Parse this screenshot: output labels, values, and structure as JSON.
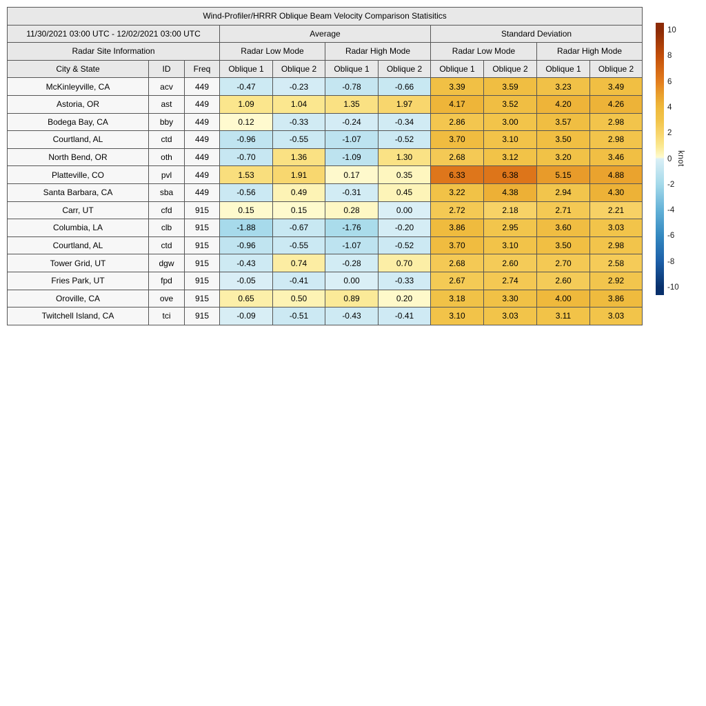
{
  "chart_data": {
    "type": "table",
    "title": "Wind-Profiler/HRRR Oblique Beam Velocity Comparison Statisitics",
    "period": "11/30/2021 03:00 UTC - 12/02/2021 03:00 UTC",
    "group_headers": [
      "Average",
      "Standard Deviation"
    ],
    "site_info_header": "Radar Site Information",
    "mode_headers": [
      "Radar Low Mode",
      "Radar High Mode",
      "Radar Low Mode",
      "Radar High Mode"
    ],
    "site_columns": [
      "City & State",
      "ID",
      "Freq"
    ],
    "oblique_headers": [
      "Oblique 1",
      "Oblique 2",
      "Oblique 1",
      "Oblique 2",
      "Oblique 1",
      "Oblique 2",
      "Oblique 1",
      "Oblique 2"
    ],
    "rows": [
      {
        "city": "McKinleyville, CA",
        "id": "acv",
        "freq": "449",
        "values": [
          -0.47,
          -0.23,
          -0.78,
          -0.66,
          3.39,
          3.59,
          3.23,
          3.49
        ]
      },
      {
        "city": "Astoria, OR",
        "id": "ast",
        "freq": "449",
        "values": [
          1.09,
          1.04,
          1.35,
          1.97,
          4.17,
          3.52,
          4.2,
          4.26
        ]
      },
      {
        "city": "Bodega Bay, CA",
        "id": "bby",
        "freq": "449",
        "values": [
          0.12,
          -0.33,
          -0.24,
          -0.34,
          2.86,
          3.0,
          3.57,
          2.98
        ]
      },
      {
        "city": "Courtland, AL",
        "id": "ctd",
        "freq": "449",
        "values": [
          -0.96,
          -0.55,
          -1.07,
          -0.52,
          3.7,
          3.1,
          3.5,
          2.98
        ]
      },
      {
        "city": "North Bend, OR",
        "id": "oth",
        "freq": "449",
        "values": [
          -0.7,
          1.36,
          -1.09,
          1.3,
          2.68,
          3.12,
          3.2,
          3.46
        ]
      },
      {
        "city": "Platteville, CO",
        "id": "pvl",
        "freq": "449",
        "values": [
          1.53,
          1.91,
          0.17,
          0.35,
          6.33,
          6.38,
          5.15,
          4.88
        ]
      },
      {
        "city": "Santa Barbara, CA",
        "id": "sba",
        "freq": "449",
        "values": [
          -0.56,
          0.49,
          -0.31,
          0.45,
          3.22,
          4.38,
          2.94,
          4.3
        ]
      },
      {
        "city": "Carr, UT",
        "id": "cfd",
        "freq": "915",
        "values": [
          0.15,
          0.15,
          0.28,
          0.0,
          2.72,
          2.18,
          2.71,
          2.21
        ]
      },
      {
        "city": "Columbia, LA",
        "id": "clb",
        "freq": "915",
        "values": [
          -1.88,
          -0.67,
          -1.76,
          -0.2,
          3.86,
          2.95,
          3.6,
          3.03
        ]
      },
      {
        "city": "Courtland, AL",
        "id": "ctd",
        "freq": "915",
        "values": [
          -0.96,
          -0.55,
          -1.07,
          -0.52,
          3.7,
          3.1,
          3.5,
          2.98
        ]
      },
      {
        "city": "Tower Grid, UT",
        "id": "dgw",
        "freq": "915",
        "values": [
          -0.43,
          0.74,
          -0.28,
          0.7,
          2.68,
          2.6,
          2.7,
          2.58
        ]
      },
      {
        "city": "Fries Park, UT",
        "id": "fpd",
        "freq": "915",
        "values": [
          -0.05,
          -0.41,
          0.0,
          -0.33,
          2.67,
          2.74,
          2.6,
          2.92
        ]
      },
      {
        "city": "Oroville, CA",
        "id": "ove",
        "freq": "915",
        "values": [
          0.65,
          0.5,
          0.89,
          0.2,
          3.18,
          3.3,
          4.0,
          3.86
        ]
      },
      {
        "city": "Twitchell Island, CA",
        "id": "tci",
        "freq": "915",
        "values": [
          -0.09,
          -0.51,
          -0.43,
          -0.41,
          3.1,
          3.03,
          3.11,
          3.03
        ]
      }
    ],
    "colorbar": {
      "unit": "knot",
      "ticks": [
        10,
        8,
        6,
        4,
        2,
        0,
        -2,
        -4,
        -6,
        -8,
        -10
      ],
      "range": [
        -10.6,
        10.6
      ],
      "colormap_anchors": [
        [
          -10.6,
          "#08306b"
        ],
        [
          -10,
          "#08306b"
        ],
        [
          -8,
          "#1c5fa8"
        ],
        [
          -6,
          "#3388c0"
        ],
        [
          -4,
          "#63b1d7"
        ],
        [
          -2,
          "#a4d9ea"
        ],
        [
          0,
          "#daeff6"
        ],
        [
          0.0001,
          "#fffdd8"
        ],
        [
          1,
          "#fbe890"
        ],
        [
          2,
          "#f8d56c"
        ],
        [
          3,
          "#f2c44a"
        ],
        [
          4,
          "#efb93c"
        ],
        [
          5,
          "#e9a02c"
        ],
        [
          6,
          "#e37e1e"
        ],
        [
          8,
          "#c34e09"
        ],
        [
          10,
          "#8c2b06"
        ],
        [
          10.6,
          "#8c2b06"
        ]
      ]
    }
  }
}
